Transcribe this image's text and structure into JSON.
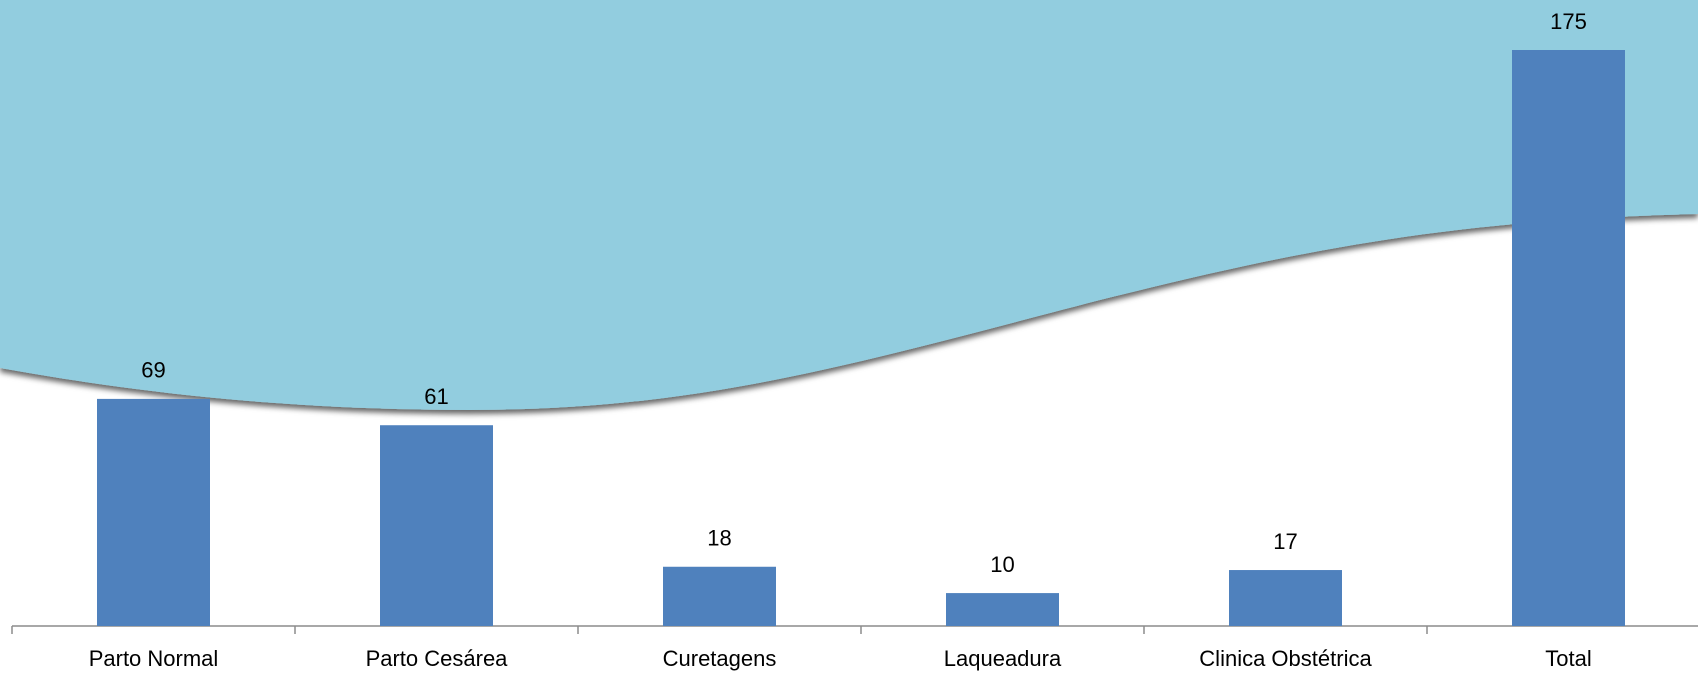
{
  "chart_data": {
    "type": "bar",
    "categories": [
      "Parto Normal",
      "Parto Cesárea",
      "Curetagens",
      "Laqueadura",
      "Clinica Obstétrica",
      "Total"
    ],
    "values": [
      69,
      61,
      18,
      10,
      17,
      175
    ],
    "color": "#4f81bd"
  }
}
